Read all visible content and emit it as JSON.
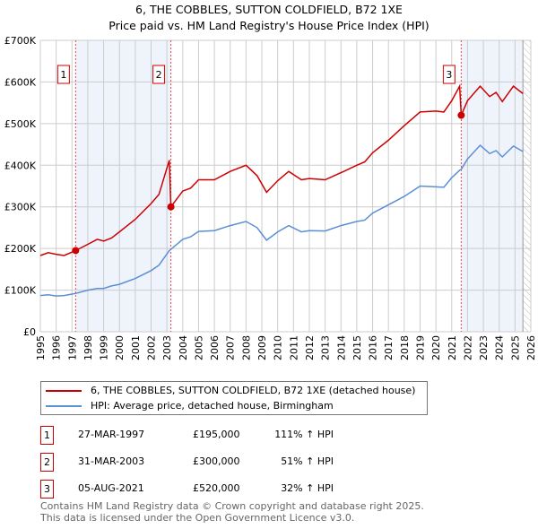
{
  "title": "6, THE COBBLES, SUTTON COLDFIELD, B72 1XE",
  "subtitle": "Price paid vs. HM Land Registry's House Price Index (HPI)",
  "chart_data": {
    "type": "line",
    "title": "6, THE COBBLES, SUTTON COLDFIELD, B72 1XE",
    "subtitle": "Price paid vs. HM Land Registry's House Price Index (HPI)",
    "xlim": [
      1995,
      2026
    ],
    "ylim": [
      0,
      700000
    ],
    "x_ticks": [
      "1995",
      "1996",
      "1997",
      "1998",
      "1999",
      "2000",
      "2001",
      "2002",
      "2003",
      "2004",
      "2005",
      "2006",
      "2007",
      "2008",
      "2009",
      "2010",
      "2011",
      "2012",
      "2013",
      "2014",
      "2015",
      "2016",
      "2017",
      "2018",
      "2019",
      "2020",
      "2021",
      "2022",
      "2023",
      "2024",
      "2025",
      "2026"
    ],
    "y_ticks": [
      {
        "v": 0,
        "label": "£0"
      },
      {
        "v": 100000,
        "label": "£100K"
      },
      {
        "v": 200000,
        "label": "£200K"
      },
      {
        "v": 300000,
        "label": "£300K"
      },
      {
        "v": 400000,
        "label": "£400K"
      },
      {
        "v": 500000,
        "label": "£500K"
      },
      {
        "v": 600000,
        "label": "£600K"
      },
      {
        "v": 700000,
        "label": "£700K"
      }
    ],
    "grid": true,
    "shaded_ranges": [
      [
        1997.23,
        2003.25
      ],
      [
        2021.6,
        2025.5
      ]
    ],
    "hatched_from": 2025.5,
    "series": [
      {
        "name": "6, THE COBBLES, SUTTON COLDFIELD, B72 1XE (detached house)",
        "color": "#cc0000",
        "x": [
          1995,
          1995.5,
          1996,
          1996.5,
          1997.23,
          1998,
          1998.6,
          1999,
          1999.5,
          2000,
          2001,
          2002,
          2002.5,
          2003.15,
          2003.25,
          2004,
          2004.5,
          2005,
          2006,
          2007,
          2008,
          2008.7,
          2009.3,
          2010,
          2010.7,
          2011.5,
          2012,
          2013,
          2014,
          2015,
          2015.5,
          2016,
          2017,
          2018,
          2019,
          2020,
          2020.5,
          2021,
          2021.5,
          2021.6,
          2022,
          2022.8,
          2023.4,
          2023.8,
          2024.2,
          2024.9,
          2025.5
        ],
        "y": [
          183000,
          190000,
          186000,
          183000,
          195000,
          210000,
          222000,
          218000,
          225000,
          240000,
          270000,
          308000,
          330000,
          412000,
          300000,
          338000,
          345000,
          365000,
          365000,
          385000,
          400000,
          375000,
          335000,
          363000,
          385000,
          365000,
          368000,
          365000,
          382000,
          400000,
          408000,
          430000,
          460000,
          495000,
          528000,
          530000,
          528000,
          555000,
          590000,
          520000,
          555000,
          590000,
          565000,
          575000,
          553000,
          590000,
          572000
        ]
      },
      {
        "name": "HPI: Average price, detached house, Birmingham",
        "color": "#5b8fd4",
        "x": [
          1995,
          1995.5,
          1996,
          1996.5,
          1997.23,
          1998,
          1998.6,
          1999,
          1999.5,
          2000,
          2001,
          2002,
          2002.5,
          2003.15,
          2003.25,
          2004,
          2004.5,
          2005,
          2006,
          2007,
          2008,
          2008.7,
          2009.3,
          2010,
          2010.7,
          2011.5,
          2012,
          2013,
          2014,
          2015,
          2015.5,
          2016,
          2017,
          2018,
          2019,
          2020,
          2020.5,
          2021,
          2021.5,
          2021.6,
          2022,
          2022.8,
          2023.4,
          2023.8,
          2024.2,
          2024.9,
          2025.5
        ],
        "y": [
          87000,
          89000,
          86000,
          87000,
          92000,
          100000,
          104000,
          104000,
          110000,
          114000,
          128000,
          147000,
          160000,
          195000,
          198000,
          222000,
          228000,
          241000,
          243000,
          255000,
          265000,
          250000,
          220000,
          240000,
          255000,
          240000,
          243000,
          242000,
          255000,
          265000,
          268000,
          285000,
          305000,
          325000,
          350000,
          348000,
          347000,
          370000,
          388000,
          390000,
          415000,
          448000,
          428000,
          435000,
          420000,
          446000,
          433000
        ]
      }
    ],
    "sales": [
      {
        "label": "1",
        "x": 1997.23,
        "y": 195000
      },
      {
        "label": "2",
        "x": 2003.25,
        "y": 300000
      },
      {
        "label": "3",
        "x": 2021.6,
        "y": 520000
      }
    ]
  },
  "legend": {
    "items": [
      {
        "label": "6, THE COBBLES, SUTTON COLDFIELD, B72 1XE (detached house)",
        "color": "#cc0000"
      },
      {
        "label": "HPI: Average price, detached house, Birmingham",
        "color": "#5b8fd4"
      }
    ]
  },
  "transactions": [
    {
      "num": "1",
      "date": "27-MAR-1997",
      "price": "£195,000",
      "hpi": "111% ↑ HPI"
    },
    {
      "num": "2",
      "date": "31-MAR-2003",
      "price": "£300,000",
      "hpi": "51% ↑ HPI"
    },
    {
      "num": "3",
      "date": "05-AUG-2021",
      "price": "£520,000",
      "hpi": "32% ↑ HPI"
    }
  ],
  "footer": {
    "line1": "Contains HM Land Registry data © Crown copyright and database right 2025.",
    "line2": "This data is licensed under the Open Government Licence v3.0."
  }
}
